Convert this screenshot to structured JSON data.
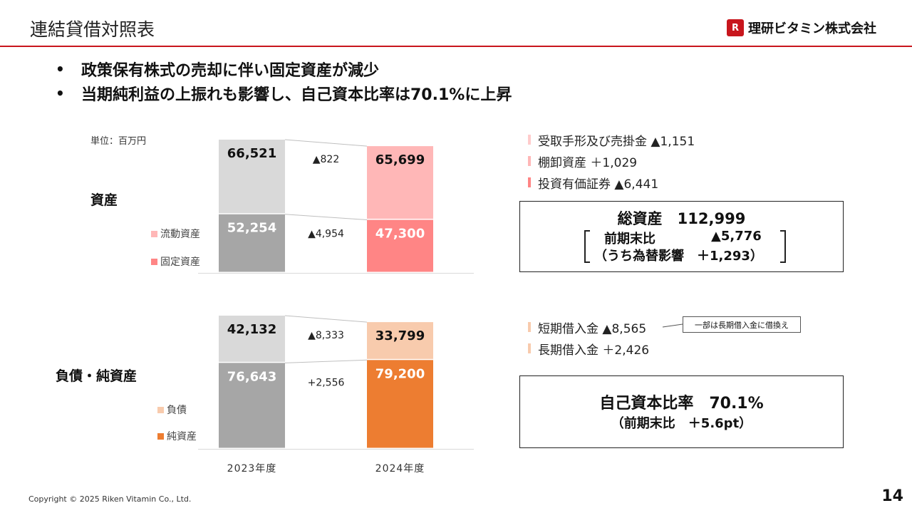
{
  "header": {
    "title": "連結貸借対照表",
    "logo_mark": "R",
    "logo_text": "理研ビタミン株式会社"
  },
  "bullets": [
    "政策保有株式の売却に伴い固定資産が減少",
    "当期純利益の上振れも影響し、自己資本比率は70.1%に上昇"
  ],
  "bullet_marker": "•",
  "unit": "単位：百万円",
  "colors": {
    "prev_top": "#d9d9d9",
    "prev_bottom": "#a6a6a6",
    "asset_current": "#ffb7b7",
    "asset_fixed": "#ff8585",
    "liab": "#f8cbad",
    "equity": "#ed7d31",
    "axis": "#d9d9d9",
    "connector": "#bfbfbf"
  },
  "chart_data": [
    {
      "type": "bar",
      "stacked": true,
      "title": "資産",
      "categories": [
        "2023年度",
        "2024年度"
      ],
      "series": [
        {
          "name": "固定資産",
          "values": [
            52254,
            47300
          ],
          "labels": [
            "52,254",
            "47,300"
          ],
          "change": "▲4,954"
        },
        {
          "name": "流動資産",
          "values": [
            66521,
            65699
          ],
          "labels": [
            "66,521",
            "65,699"
          ],
          "change": "▲822"
        }
      ],
      "ylim": [
        0,
        120000
      ]
    },
    {
      "type": "bar",
      "stacked": true,
      "title": "負債・純資産",
      "categories": [
        "2023年度",
        "2024年度"
      ],
      "series": [
        {
          "name": "純資産",
          "values": [
            76643,
            79200
          ],
          "labels": [
            "76,643",
            "79,200"
          ],
          "change": "+2,556"
        },
        {
          "name": "負債",
          "values": [
            42132,
            33799
          ],
          "labels": [
            "42,132",
            "33,799"
          ],
          "change": "▲8,333"
        }
      ],
      "ylim": [
        0,
        120000
      ]
    }
  ],
  "legend_assets": [
    "流動資産",
    "固定資産"
  ],
  "legend_liab": [
    "負債",
    "純資産"
  ],
  "asset_notes": [
    "受取手形及び売掛金 ▲1,151",
    "棚卸資産 ＋1,029",
    "投資有価証券 ▲6,441"
  ],
  "liab_notes": [
    "短期借入金 ▲8,565",
    "長期借入金 ＋2,426"
  ],
  "callout": "一部は長期借入金に借換え",
  "total_assets_box": {
    "title": "総資産　112,999",
    "row1_label": "前期末比",
    "row1_value": "▲5,776",
    "row2": "（うち為替影響　＋1,293）"
  },
  "equity_ratio_box": {
    "title": "自己資本比率　70.1%",
    "sub": "（前期末比　＋5.6pt）"
  },
  "footer": {
    "copyright": "Copyright © 2025 Riken Vitamin Co., Ltd.",
    "page": "14"
  }
}
